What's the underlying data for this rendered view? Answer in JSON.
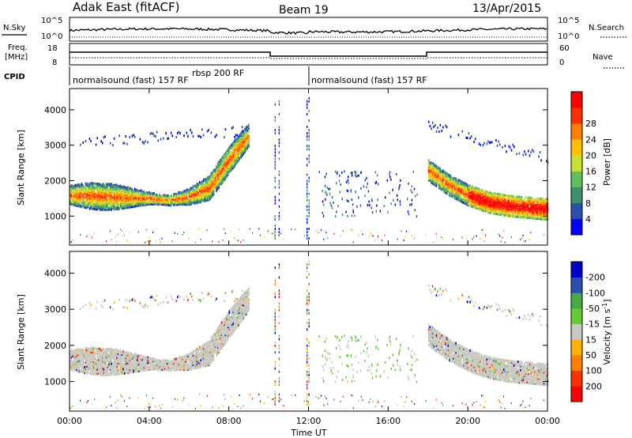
{
  "header": {
    "station": "Adak East (fitACF)",
    "beam": "Beam 19",
    "date": "13/Apr/2015"
  },
  "top_panel": {
    "n_sky_label": "N.Sky",
    "n_search_label": "N.Search",
    "freq_label_line1": "Freq.",
    "freq_label_line2": "[MHz]",
    "nave_label": "Nave",
    "cpid_label": "CPID",
    "left_ticks_nsky": [
      "10^5",
      "10^0"
    ],
    "right_ticks_nsky": [
      "10^5",
      "10^0"
    ],
    "left_ticks_freq": [
      "18",
      "8"
    ],
    "right_ticks_nave": [
      "60",
      "0"
    ],
    "cpid_segments": [
      {
        "label": "normalsound (fast) 157 RF",
        "start_hour": 0
      },
      {
        "label": "rbsp 200 RF",
        "start_hour": 6
      },
      {
        "label": "normalsound (fast) 157 RF",
        "start_hour": 12
      }
    ]
  },
  "colors": {
    "power_scale": [
      "#0000ff",
      "#2a4fb0",
      "#3f8f6f",
      "#5fbf5f",
      "#c8e032",
      "#ffc000",
      "#ff8000",
      "#ff3000",
      "#ff0000"
    ],
    "velocity_scale": [
      "#0000cc",
      "#2a4fb0",
      "#44aa44",
      "#66cc33",
      "#c8c8c0",
      "#ffb000",
      "#ff7f00",
      "#ff3000",
      "#ff0000"
    ],
    "ground_scatter": "#c8c8c0"
  },
  "chart_data": [
    {
      "type": "heatmap",
      "panel": "power",
      "xlabel": "Time UT",
      "ylabel": "Slant Range [km]",
      "xlim_hours": [
        0,
        24
      ],
      "ylim": [
        180,
        4600
      ],
      "x_ticks": [
        "00:00",
        "04:00",
        "08:00",
        "12:00",
        "16:00",
        "20:00",
        "00:00"
      ],
      "y_ticks": [
        1000,
        2000,
        3000,
        4000
      ],
      "colorbar_label": "Power [dB]",
      "colorbar_ticks": [
        4,
        8,
        12,
        16,
        20,
        24,
        28
      ],
      "echo_bands": [
        {
          "time_hours": [
            0,
            2,
            4,
            5,
            6,
            7,
            8,
            9
          ],
          "range_km": [
            1600,
            1550,
            1500,
            1450,
            1550,
            1800,
            2600,
            3300
          ]
        },
        {
          "time_hours": [
            18,
            19,
            20,
            21,
            22,
            23,
            24
          ],
          "range_km": [
            2300,
            1900,
            1600,
            1400,
            1300,
            1250,
            1200
          ]
        }
      ]
    },
    {
      "type": "heatmap",
      "panel": "velocity",
      "xlabel": "Time UT",
      "ylabel": "Slant Range [km]",
      "xlim_hours": [
        0,
        24
      ],
      "ylim": [
        180,
        4600
      ],
      "x_ticks": [
        "00:00",
        "04:00",
        "08:00",
        "12:00",
        "16:00",
        "20:00",
        "00:00"
      ],
      "y_ticks": [
        1000,
        2000,
        3000,
        4000
      ],
      "colorbar_label": "Velocity [m s-1]",
      "colorbar_ticks": [
        200,
        100,
        50,
        15,
        -15,
        -50,
        -100,
        -200
      ]
    }
  ],
  "x_axis": {
    "ticks": [
      "00:00",
      "04:00",
      "08:00",
      "12:00",
      "16:00",
      "20:00",
      "00:00"
    ],
    "label": "Time UT"
  }
}
